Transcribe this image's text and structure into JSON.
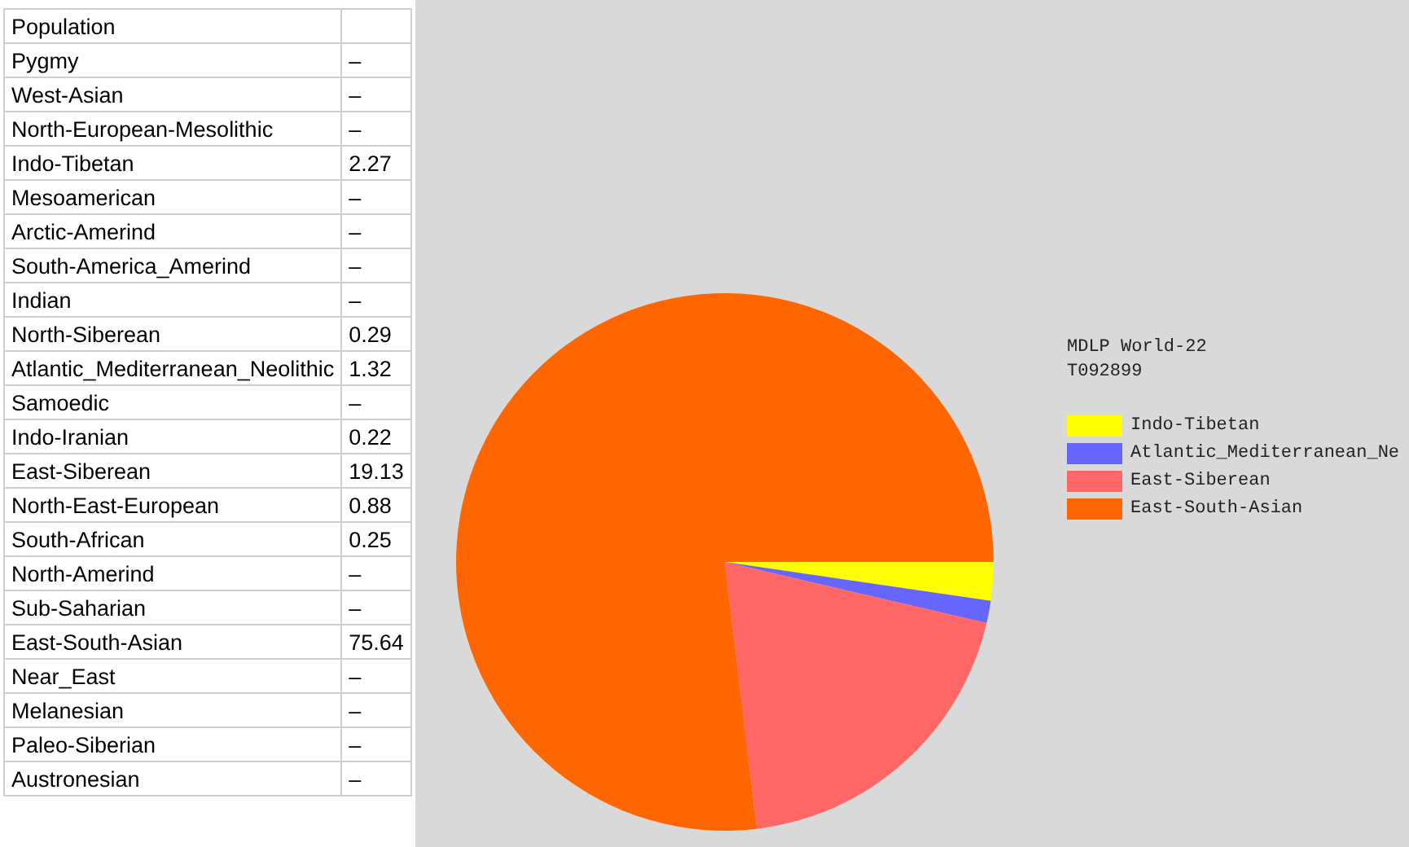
{
  "chart_data": [
    {
      "type": "other",
      "title": "Population",
      "categories": [
        "Pygmy",
        "West-Asian",
        "North-European-Mesolithic",
        "Indo-Tibetan",
        "Mesoamerican",
        "Arctic-Amerind",
        "South-America_Amerind",
        "Indian",
        "North-Siberean",
        "Atlantic_Mediterranean_Neolithic",
        "Samoedic",
        "Indo-Iranian",
        "East-Siberean",
        "North-East-European",
        "South-African",
        "North-Amerind",
        "Sub-Saharian",
        "East-South-Asian",
        "Near_East",
        "Melanesian",
        "Paleo-Siberian",
        "Austronesian"
      ],
      "value_labels": [
        "–",
        "–",
        "–",
        "2.27",
        "–",
        "–",
        "–",
        "–",
        "0.29",
        "1.32",
        "–",
        "0.22",
        "19.13",
        "0.88",
        "0.25",
        "–",
        "–",
        "75.64",
        "–",
        "–",
        "–",
        "–"
      ]
    },
    {
      "type": "pie",
      "title": "MDLP World-22",
      "subtitle": "T092899",
      "categories": [
        "Indo-Tibetan",
        "Atlantic_Mediterranean_Ne",
        "East-Siberean",
        "East-South-Asian"
      ],
      "values": [
        2.27,
        1.32,
        19.13,
        75.64
      ],
      "colors": [
        "#ffff00",
        "#6666ff",
        "#ff6666",
        "#ff6600"
      ],
      "legend": "right"
    }
  ]
}
